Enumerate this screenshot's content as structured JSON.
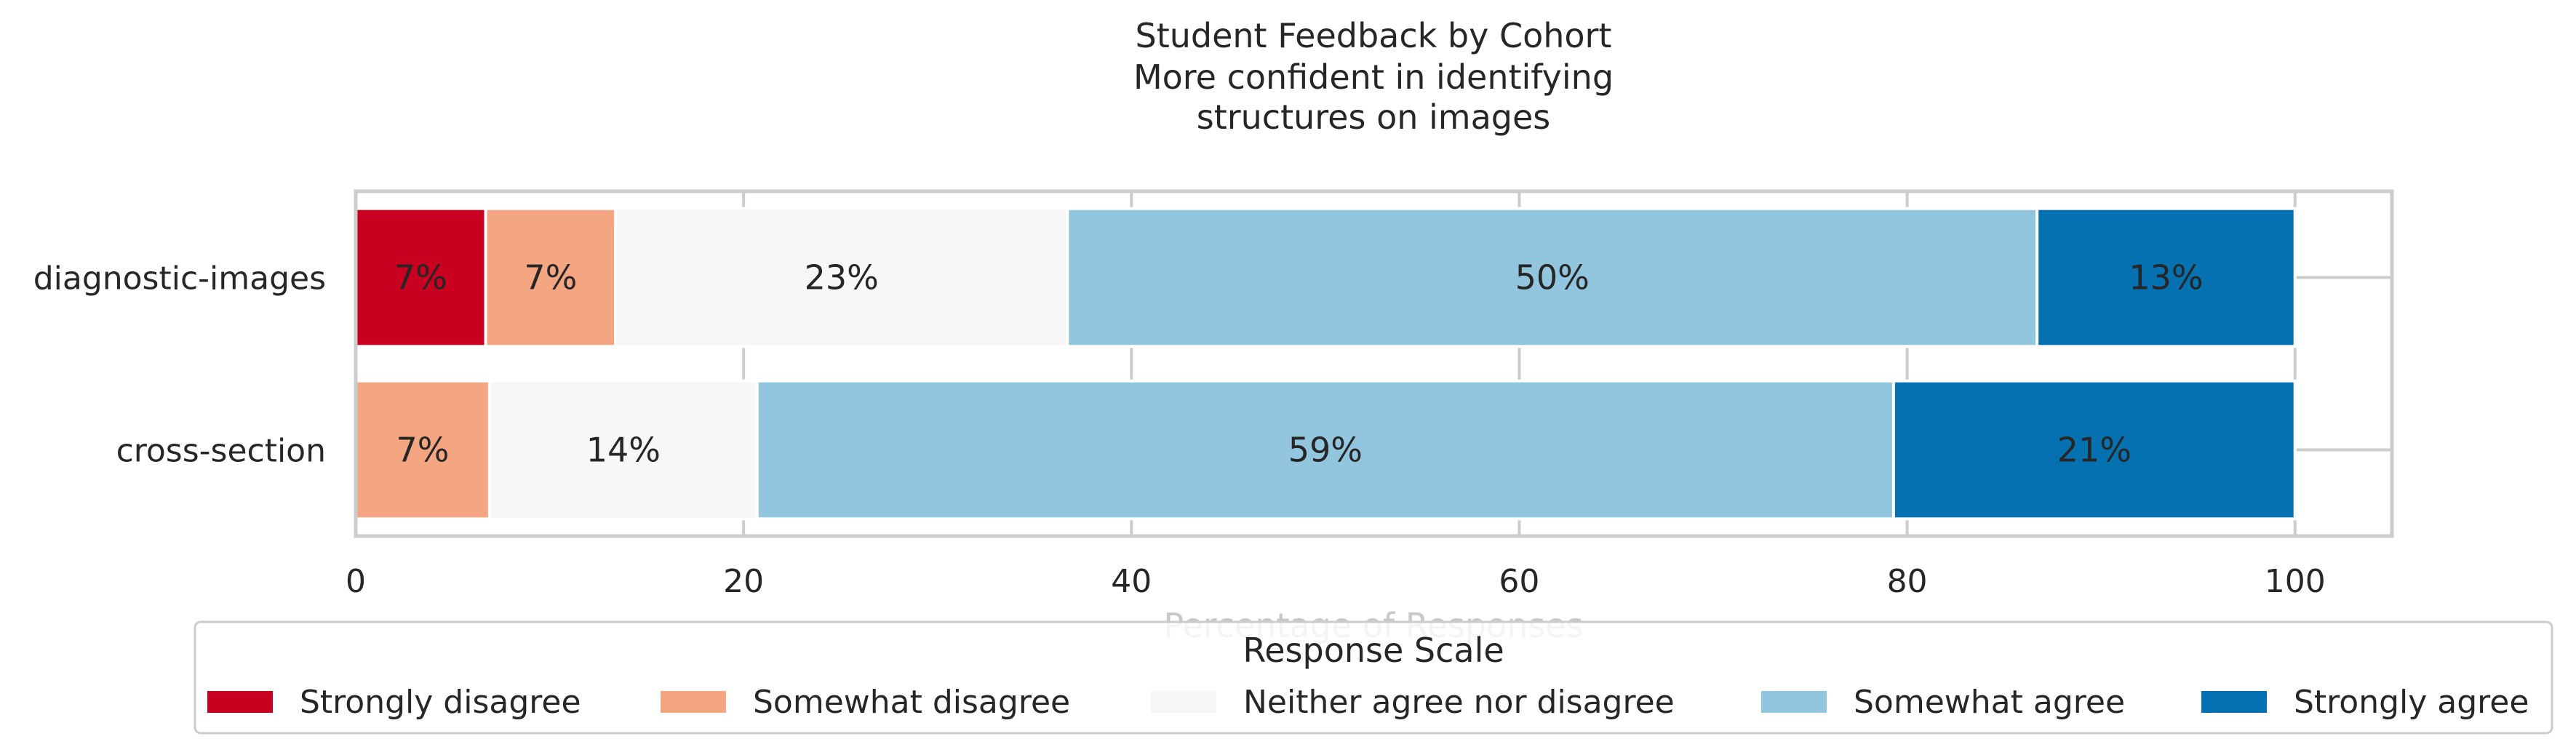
{
  "chart_data": {
    "type": "bar",
    "orientation": "horizontal",
    "stacked": true,
    "title_lines": [
      "Student Feedback by Cohort",
      "More confident in identifying",
      "structures on images"
    ],
    "xlabel": "Percentage of Responses",
    "ylabel": "",
    "xlim": [
      0,
      105
    ],
    "xticks": [
      0,
      20,
      40,
      60,
      80,
      100
    ],
    "grid": true,
    "legend_title": "Response Scale",
    "legend_position": "bottom",
    "categories": [
      "diagnostic-images",
      "cross-section"
    ],
    "series": [
      {
        "name": "Strongly disagree",
        "color": "#ca0020",
        "values": [
          6.7,
          0
        ],
        "labels": [
          "7%",
          ""
        ]
      },
      {
        "name": "Somewhat disagree",
        "color": "#f4a582",
        "values": [
          6.7,
          6.9
        ],
        "labels": [
          "7%",
          "7%"
        ]
      },
      {
        "name": "Neither agree nor disagree",
        "color": "#f7f7f7",
        "values": [
          23.3,
          13.8
        ],
        "labels": [
          "23%",
          "14%"
        ]
      },
      {
        "name": "Somewhat agree",
        "color": "#92c5de",
        "values": [
          50.0,
          58.6
        ],
        "labels": [
          "50%",
          "59%"
        ]
      },
      {
        "name": "Strongly agree",
        "color": "#0571b0",
        "values": [
          13.3,
          20.7
        ],
        "labels": [
          "13%",
          "21%"
        ]
      }
    ]
  }
}
